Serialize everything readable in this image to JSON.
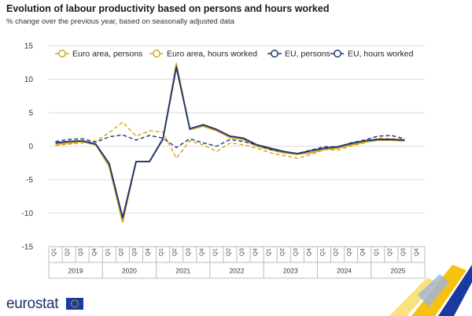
{
  "title": "Evolution of labour productivity based on persons and hours worked",
  "subtitle": "% change over the previous year, based on seasonally adjusted data",
  "brand": {
    "name": "eurostat",
    "color": "#1f2f6b",
    "flag_color": "#1a3aa0",
    "star_color": "#ffcc00"
  },
  "chart_data": {
    "type": "line",
    "title": "Evolution of labour productivity based on persons and hours worked",
    "subtitle": "% change over the previous year, based on seasonally adjusted data",
    "ylim": [
      -15,
      15
    ],
    "yticks": [
      15,
      10,
      5,
      0,
      -5,
      -10,
      -15
    ],
    "grid": true,
    "legend": "top-right",
    "quarters": [
      "Q1",
      "Q2",
      "Q3",
      "Q4",
      "Q1",
      "Q2",
      "Q3",
      "Q4",
      "Q1",
      "Q2",
      "Q3",
      "Q4",
      "Q1",
      "Q2",
      "Q3",
      "Q4",
      "Q1",
      "Q2",
      "Q3",
      "Q4",
      "Q1",
      "Q2",
      "Q3",
      "Q4",
      "Q1",
      "Q2",
      "Q3",
      "Q4"
    ],
    "years": [
      "2019",
      "2020",
      "2021",
      "2022",
      "2023",
      "2024",
      "2025"
    ],
    "series": [
      {
        "name": "Euro area, persons",
        "color": "#d4a514",
        "dash": false,
        "values": [
          0.3,
          0.5,
          0.7,
          0.2,
          -3.0,
          -11.3,
          -2.3,
          -2.3,
          1.0,
          12.3,
          2.5,
          3.0,
          2.3,
          1.3,
          1.0,
          0.0,
          -0.5,
          -1.0,
          -1.2,
          -1.0,
          -0.5,
          -0.3,
          0.2,
          0.6,
          0.9,
          0.9,
          0.8,
          null
        ]
      },
      {
        "name": "Euro area, hours worked",
        "color": "#d4a514",
        "dash": true,
        "values": [
          0.1,
          0.3,
          0.5,
          0.8,
          2.0,
          3.6,
          1.5,
          2.3,
          2.1,
          -1.8,
          0.8,
          0.2,
          -0.8,
          0.5,
          0.2,
          -0.3,
          -1.0,
          -1.4,
          -1.8,
          -1.3,
          -0.5,
          -0.6,
          0.0,
          0.5,
          1.2,
          1.1,
          1.0,
          null
        ]
      },
      {
        "name": "EU, persons",
        "color": "#1f3575",
        "dash": false,
        "values": [
          0.5,
          0.7,
          0.8,
          0.3,
          -2.6,
          -10.7,
          -2.3,
          -2.3,
          1.1,
          11.8,
          2.6,
          3.2,
          2.5,
          1.5,
          1.2,
          0.2,
          -0.3,
          -0.8,
          -1.1,
          -0.7,
          -0.3,
          -0.1,
          0.4,
          0.8,
          1.0,
          1.0,
          0.9,
          null
        ]
      },
      {
        "name": "EU, hours worked",
        "color": "#1f3575",
        "dash": true,
        "values": [
          0.7,
          1.0,
          1.1,
          0.6,
          1.4,
          1.7,
          0.9,
          1.6,
          1.2,
          -0.2,
          1.1,
          0.5,
          0.0,
          1.0,
          0.7,
          0.2,
          -0.5,
          -0.8,
          -1.1,
          -0.6,
          -0.1,
          -0.1,
          0.5,
          0.9,
          1.5,
          1.6,
          1.1,
          null
        ]
      }
    ]
  }
}
